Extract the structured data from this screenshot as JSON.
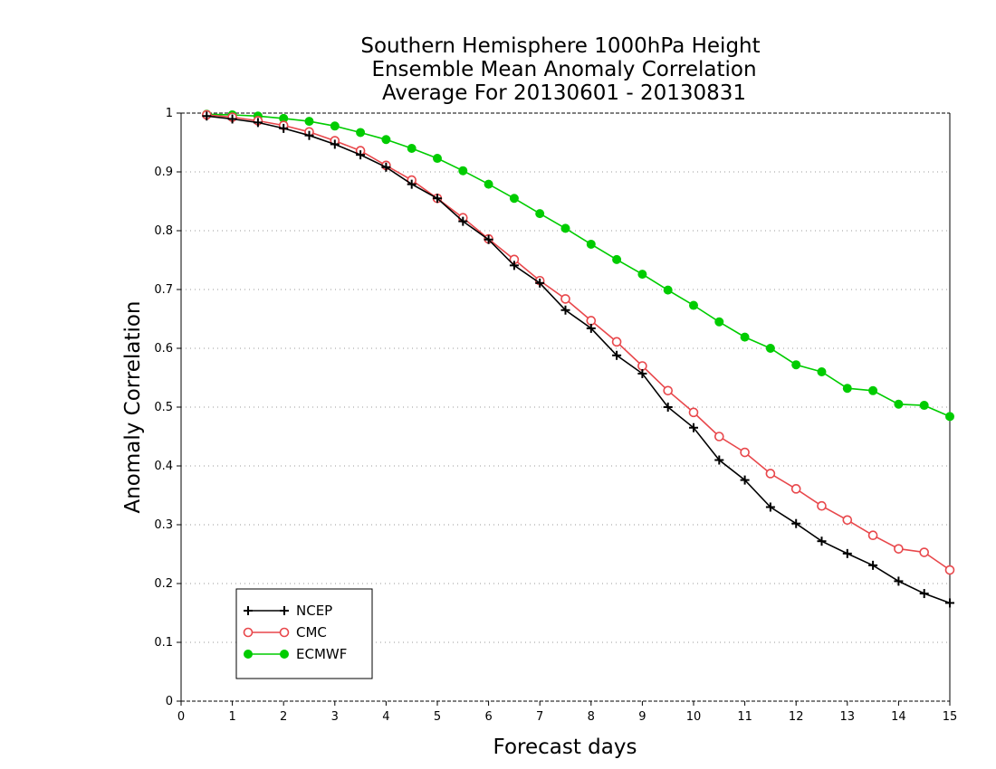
{
  "chart_data": {
    "type": "line",
    "title": [
      "Southern Hemisphere 1000hPa Height",
      "Ensemble Mean Anomaly Correlation",
      "Average For 20130601 - 20130831"
    ],
    "xlabel": "Forecast days",
    "ylabel": "Anomaly Correlation",
    "xlim": [
      0,
      15
    ],
    "ylim": [
      0,
      1
    ],
    "xticks": [
      "0",
      "1",
      "2",
      "3",
      "4",
      "5",
      "6",
      "7",
      "8",
      "9",
      "10",
      "11",
      "12",
      "13",
      "14",
      "15"
    ],
    "yticks": [
      "0",
      "0.1",
      "0.2",
      "0.3",
      "0.4",
      "0.5",
      "0.6",
      "0.7",
      "0.8",
      "0.9",
      "1"
    ],
    "grid": "horizontal dotted",
    "legend_position": "bottom-left",
    "x": [
      0.5,
      1,
      1.5,
      2,
      2.5,
      3,
      3.5,
      4,
      4.5,
      5,
      5.5,
      6,
      6.5,
      7,
      7.5,
      8,
      8.5,
      9,
      9.5,
      10,
      10.5,
      11,
      11.5,
      12,
      12.5,
      13,
      13.5,
      14,
      14.5,
      15
    ],
    "series": [
      {
        "name": "NCEP",
        "color": "#000000",
        "marker": "plus",
        "values": [
          0.995,
          0.99,
          0.984,
          0.974,
          0.962,
          0.947,
          0.929,
          0.908,
          0.879,
          0.855,
          0.816,
          0.785,
          0.741,
          0.711,
          0.665,
          0.634,
          0.588,
          0.557,
          0.5,
          0.465,
          0.41,
          0.376,
          0.33,
          0.302,
          0.272,
          0.251,
          0.231,
          0.204,
          0.183,
          0.167
        ]
      },
      {
        "name": "CMC",
        "color": "#e8474b",
        "marker": "open-circle",
        "values": [
          0.997,
          0.993,
          0.987,
          0.979,
          0.968,
          0.953,
          0.936,
          0.911,
          0.886,
          0.855,
          0.822,
          0.786,
          0.751,
          0.715,
          0.684,
          0.647,
          0.611,
          0.57,
          0.528,
          0.491,
          0.45,
          0.423,
          0.387,
          0.361,
          0.332,
          0.308,
          0.282,
          0.259,
          0.253,
          0.223
        ]
      },
      {
        "name": "ECMWF",
        "color": "#00cc00",
        "marker": "filled-circle",
        "values": [
          0.998,
          0.997,
          0.995,
          0.991,
          0.986,
          0.978,
          0.967,
          0.955,
          0.94,
          0.923,
          0.902,
          0.879,
          0.855,
          0.829,
          0.804,
          0.777,
          0.751,
          0.726,
          0.699,
          0.673,
          0.645,
          0.619,
          0.6,
          0.572,
          0.56,
          0.532,
          0.528,
          0.505,
          0.503,
          0.484
        ]
      }
    ]
  }
}
